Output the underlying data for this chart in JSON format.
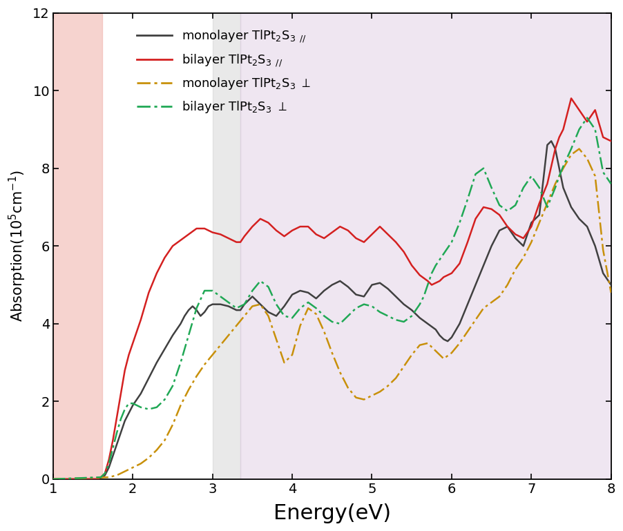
{
  "xlim": [
    1,
    8
  ],
  "ylim": [
    0,
    12
  ],
  "xticks": [
    1,
    2,
    3,
    4,
    5,
    6,
    7,
    8
  ],
  "yticks": [
    0,
    2,
    4,
    6,
    8,
    10,
    12
  ],
  "xlabel": "Energy(eV)",
  "ylabel": "Absorption($10^5$cm$^{-1}$)",
  "bg_pink_xmin": 1.0,
  "bg_pink_xmax": 1.62,
  "bg_gray_xmin": 3.0,
  "bg_gray_xmax": 3.35,
  "bg_lavender_xmin": 3.35,
  "bg_lavender_xmax": 8.0,
  "line1_color": "#404040",
  "line2_color": "#d42020",
  "line3_color": "#c8900a",
  "line4_color": "#20a855",
  "monolayer_para_x": [
    1.0,
    1.55,
    1.6,
    1.65,
    1.7,
    1.75,
    1.8,
    1.85,
    1.9,
    1.95,
    2.0,
    2.05,
    2.1,
    2.15,
    2.2,
    2.3,
    2.4,
    2.5,
    2.6,
    2.65,
    2.7,
    2.75,
    2.8,
    2.85,
    2.9,
    2.95,
    3.0,
    3.1,
    3.2,
    3.3,
    3.35,
    3.4,
    3.5,
    3.6,
    3.7,
    3.8,
    3.9,
    4.0,
    4.1,
    4.2,
    4.3,
    4.4,
    4.5,
    4.6,
    4.7,
    4.8,
    4.9,
    5.0,
    5.1,
    5.2,
    5.3,
    5.4,
    5.5,
    5.6,
    5.7,
    5.8,
    5.85,
    5.9,
    5.95,
    6.0,
    6.1,
    6.2,
    6.3,
    6.4,
    6.5,
    6.6,
    6.7,
    6.8,
    6.9,
    7.0,
    7.1,
    7.2,
    7.25,
    7.3,
    7.4,
    7.5,
    7.6,
    7.7,
    7.8,
    7.9,
    8.0
  ],
  "monolayer_para_y": [
    0.0,
    0.0,
    0.05,
    0.1,
    0.3,
    0.6,
    0.9,
    1.2,
    1.5,
    1.7,
    1.9,
    2.05,
    2.2,
    2.4,
    2.6,
    3.0,
    3.35,
    3.7,
    4.0,
    4.2,
    4.35,
    4.45,
    4.35,
    4.2,
    4.3,
    4.45,
    4.5,
    4.5,
    4.45,
    4.35,
    4.35,
    4.5,
    4.7,
    4.5,
    4.3,
    4.2,
    4.45,
    4.75,
    4.85,
    4.8,
    4.65,
    4.85,
    5.0,
    5.1,
    4.95,
    4.75,
    4.7,
    5.0,
    5.05,
    4.9,
    4.7,
    4.5,
    4.35,
    4.15,
    4.0,
    3.85,
    3.7,
    3.6,
    3.55,
    3.65,
    4.0,
    4.5,
    5.0,
    5.5,
    6.0,
    6.4,
    6.5,
    6.2,
    6.0,
    6.6,
    6.8,
    8.6,
    8.7,
    8.5,
    7.5,
    7.0,
    6.7,
    6.5,
    6.0,
    5.3,
    5.0
  ],
  "bilayer_para_x": [
    1.0,
    1.55,
    1.6,
    1.65,
    1.7,
    1.75,
    1.8,
    1.85,
    1.9,
    1.95,
    2.0,
    2.1,
    2.2,
    2.3,
    2.4,
    2.5,
    2.6,
    2.7,
    2.8,
    2.9,
    3.0,
    3.1,
    3.2,
    3.3,
    3.35,
    3.4,
    3.5,
    3.6,
    3.7,
    3.8,
    3.9,
    4.0,
    4.1,
    4.2,
    4.3,
    4.4,
    4.5,
    4.6,
    4.7,
    4.8,
    4.9,
    5.0,
    5.1,
    5.2,
    5.3,
    5.4,
    5.5,
    5.6,
    5.7,
    5.75,
    5.8,
    5.85,
    5.9,
    6.0,
    6.1,
    6.2,
    6.3,
    6.4,
    6.5,
    6.6,
    6.7,
    6.8,
    6.9,
    7.0,
    7.1,
    7.2,
    7.3,
    7.35,
    7.4,
    7.5,
    7.6,
    7.7,
    7.8,
    7.9,
    8.0
  ],
  "bilayer_para_y": [
    0.0,
    0.0,
    0.05,
    0.15,
    0.5,
    1.0,
    1.6,
    2.2,
    2.8,
    3.2,
    3.5,
    4.1,
    4.8,
    5.3,
    5.7,
    6.0,
    6.15,
    6.3,
    6.45,
    6.45,
    6.35,
    6.3,
    6.2,
    6.1,
    6.1,
    6.25,
    6.5,
    6.7,
    6.6,
    6.4,
    6.25,
    6.4,
    6.5,
    6.5,
    6.3,
    6.2,
    6.35,
    6.5,
    6.4,
    6.2,
    6.1,
    6.3,
    6.5,
    6.3,
    6.1,
    5.85,
    5.5,
    5.25,
    5.1,
    5.0,
    5.05,
    5.1,
    5.2,
    5.3,
    5.55,
    6.1,
    6.7,
    7.0,
    6.95,
    6.8,
    6.5,
    6.3,
    6.2,
    6.5,
    7.1,
    7.6,
    8.5,
    8.8,
    9.0,
    9.8,
    9.5,
    9.2,
    9.5,
    8.8,
    8.7
  ],
  "monolayer_perp_x": [
    1.0,
    1.7,
    1.8,
    1.9,
    2.0,
    2.1,
    2.2,
    2.3,
    2.4,
    2.5,
    2.6,
    2.7,
    2.8,
    2.9,
    3.0,
    3.1,
    3.2,
    3.3,
    3.4,
    3.5,
    3.6,
    3.7,
    3.8,
    3.9,
    4.0,
    4.1,
    4.2,
    4.3,
    4.4,
    4.5,
    4.6,
    4.7,
    4.8,
    4.9,
    5.0,
    5.1,
    5.2,
    5.3,
    5.4,
    5.5,
    5.6,
    5.7,
    5.8,
    5.9,
    6.0,
    6.1,
    6.2,
    6.3,
    6.4,
    6.5,
    6.6,
    6.7,
    6.8,
    6.9,
    7.0,
    7.1,
    7.2,
    7.3,
    7.35,
    7.4,
    7.5,
    7.6,
    7.7,
    7.8,
    7.9,
    8.0
  ],
  "monolayer_perp_y": [
    0.0,
    0.05,
    0.1,
    0.2,
    0.3,
    0.4,
    0.55,
    0.75,
    1.0,
    1.4,
    1.9,
    2.3,
    2.65,
    2.95,
    3.2,
    3.45,
    3.7,
    3.95,
    4.2,
    4.45,
    4.5,
    4.2,
    3.6,
    3.0,
    3.2,
    3.95,
    4.4,
    4.25,
    3.8,
    3.25,
    2.75,
    2.35,
    2.1,
    2.05,
    2.15,
    2.25,
    2.4,
    2.6,
    2.9,
    3.2,
    3.45,
    3.5,
    3.3,
    3.1,
    3.25,
    3.5,
    3.8,
    4.1,
    4.4,
    4.55,
    4.7,
    5.0,
    5.4,
    5.7,
    6.1,
    6.6,
    7.1,
    7.6,
    7.8,
    8.0,
    8.35,
    8.5,
    8.25,
    7.8,
    5.9,
    4.8
  ],
  "bilayer_perp_x": [
    1.0,
    1.6,
    1.65,
    1.7,
    1.75,
    1.8,
    1.85,
    1.9,
    1.95,
    2.0,
    2.1,
    2.2,
    2.3,
    2.4,
    2.5,
    2.6,
    2.7,
    2.8,
    2.9,
    3.0,
    3.1,
    3.2,
    3.3,
    3.4,
    3.5,
    3.6,
    3.7,
    3.8,
    3.9,
    4.0,
    4.1,
    4.2,
    4.3,
    4.4,
    4.5,
    4.6,
    4.7,
    4.8,
    4.9,
    5.0,
    5.1,
    5.2,
    5.3,
    5.4,
    5.5,
    5.6,
    5.65,
    5.7,
    5.75,
    5.8,
    5.9,
    6.0,
    6.1,
    6.2,
    6.3,
    6.4,
    6.5,
    6.6,
    6.7,
    6.8,
    6.9,
    7.0,
    7.1,
    7.2,
    7.3,
    7.35,
    7.4,
    7.5,
    7.6,
    7.7,
    7.8,
    7.9,
    8.0
  ],
  "bilayer_perp_y": [
    0.0,
    0.05,
    0.15,
    0.4,
    0.8,
    1.2,
    1.55,
    1.8,
    1.95,
    1.95,
    1.85,
    1.8,
    1.85,
    2.05,
    2.4,
    3.0,
    3.7,
    4.4,
    4.85,
    4.85,
    4.7,
    4.55,
    4.4,
    4.5,
    4.85,
    5.1,
    4.95,
    4.5,
    4.2,
    4.15,
    4.4,
    4.55,
    4.4,
    4.2,
    4.05,
    4.0,
    4.2,
    4.4,
    4.5,
    4.45,
    4.3,
    4.2,
    4.1,
    4.05,
    4.2,
    4.5,
    4.7,
    5.0,
    5.3,
    5.5,
    5.8,
    6.1,
    6.6,
    7.2,
    7.85,
    8.0,
    7.5,
    7.05,
    6.9,
    7.05,
    7.5,
    7.8,
    7.5,
    7.0,
    7.5,
    7.8,
    8.05,
    8.5,
    9.0,
    9.3,
    9.0,
    7.9,
    7.6
  ]
}
